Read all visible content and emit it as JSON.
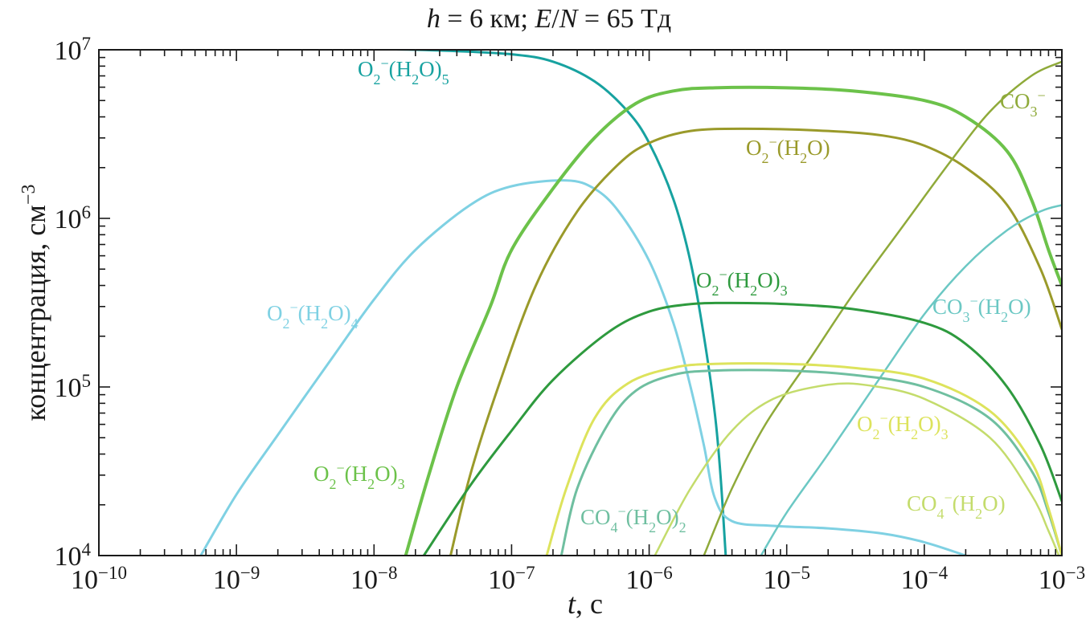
{
  "chart_data": {
    "type": "line",
    "title_parts": [
      {
        "t": "h",
        "italic": true
      },
      {
        "t": " = 6 км; "
      },
      {
        "t": "E",
        "italic": true
      },
      {
        "t": "/"
      },
      {
        "t": "N",
        "italic": true
      },
      {
        "t": " = 65 Тд"
      }
    ],
    "xlabel_parts": [
      {
        "t": "t",
        "italic": true
      },
      {
        "t": ", с"
      }
    ],
    "ylabel_base": "концентрация, см",
    "ylabel_sup": "−3",
    "x_scale": "log",
    "y_scale": "log",
    "xlim": [
      1e-10,
      0.001
    ],
    "ylim": [
      10000.0,
      10000000.0
    ],
    "grid": false,
    "legend": "none (labels placed next to curves)",
    "x_ticks": [
      {
        "base": "10",
        "exp": "−10"
      },
      {
        "base": "10",
        "exp": "−9"
      },
      {
        "base": "10",
        "exp": "−8"
      },
      {
        "base": "10",
        "exp": "−7"
      },
      {
        "base": "10",
        "exp": "−6"
      },
      {
        "base": "10",
        "exp": "−5"
      },
      {
        "base": "10",
        "exp": "−4"
      },
      {
        "base": "10",
        "exp": "−3"
      }
    ],
    "y_ticks": [
      {
        "base": "10",
        "exp": "4"
      },
      {
        "base": "10",
        "exp": "5"
      },
      {
        "base": "10",
        "exp": "6"
      },
      {
        "base": "10",
        "exp": "7"
      }
    ],
    "series": [
      {
        "name": "O2-(H2O)5",
        "label_parts": [
          {
            "t": "O"
          },
          {
            "t": "2",
            "sub": true
          },
          {
            "t": "−",
            "sup": true
          },
          {
            "t": "(H"
          },
          {
            "t": "2",
            "sub": true
          },
          {
            "t": "O)"
          },
          {
            "t": "5",
            "sub": true
          }
        ],
        "color": "#17a2a0",
        "width": 3,
        "points": [
          [
            1e-10,
            10200000.0
          ],
          [
            1e-09,
            10200000.0
          ],
          [
            1e-08,
            10100000.0
          ],
          [
            3e-08,
            9900000.0
          ],
          [
            1e-07,
            9400000.0
          ],
          [
            2e-07,
            8500000.0
          ],
          [
            4e-07,
            6500000.0
          ],
          [
            7e-07,
            4300000.0
          ],
          [
            1e-06,
            2800000.0
          ],
          [
            1.5e-06,
            1300000.0
          ],
          [
            2e-06,
            550000.0
          ],
          [
            2.5e-06,
            200000.0
          ],
          [
            3e-06,
            70000.0
          ],
          [
            3.3e-06,
            30000.0
          ],
          [
            3.6e-06,
            10000.0
          ]
        ]
      },
      {
        "name": "O2-(H2O)4",
        "label_parts": [
          {
            "t": "O"
          },
          {
            "t": "2",
            "sub": true
          },
          {
            "t": "−",
            "sup": true
          },
          {
            "t": "(H"
          },
          {
            "t": "2",
            "sub": true
          },
          {
            "t": "O)"
          },
          {
            "t": "4",
            "sub": true
          }
        ],
        "color": "#7fd1e3",
        "width": 3,
        "points": [
          [
            5.5e-10,
            10000.0
          ],
          [
            1e-09,
            23000.0
          ],
          [
            2e-09,
            52000.0
          ],
          [
            5e-09,
            150000.0
          ],
          [
            1e-08,
            330000.0
          ],
          [
            2e-08,
            650000.0
          ],
          [
            5e-08,
            1200000.0
          ],
          [
            1e-07,
            1550000.0
          ],
          [
            2.5e-07,
            1680000.0
          ],
          [
            4e-07,
            1500000.0
          ],
          [
            6e-07,
            1100000.0
          ],
          [
            1e-06,
            560000.0
          ],
          [
            1.5e-06,
            240000.0
          ],
          [
            2e-06,
            100000.0
          ],
          [
            2.5e-06,
            45000.0
          ],
          [
            3e-06,
            22000.0
          ],
          [
            4e-06,
            16000.0
          ],
          [
            8e-06,
            15000.0
          ],
          [
            2e-05,
            14500.0
          ],
          [
            5e-05,
            13500.0
          ],
          [
            0.0001,
            12000.0
          ],
          [
            0.0002,
            10000.0
          ]
        ]
      },
      {
        "name": "O2-(H2O)3 (green)",
        "label_parts": [
          {
            "t": "O"
          },
          {
            "t": "2",
            "sub": true
          },
          {
            "t": "−",
            "sup": true
          },
          {
            "t": "(H"
          },
          {
            "t": "2",
            "sub": true
          },
          {
            "t": "O)"
          },
          {
            "t": "3",
            "sub": true
          }
        ],
        "color": "#6cc24a",
        "width": 4,
        "points": [
          [
            1.7e-08,
            10000.0
          ],
          [
            2.5e-08,
            30000.0
          ],
          [
            4e-08,
            100000.0
          ],
          [
            7e-08,
            300000.0
          ],
          [
            1e-07,
            650000.0
          ],
          [
            2e-07,
            1500000.0
          ],
          [
            4e-07,
            3000000.0
          ],
          [
            8e-07,
            4800000.0
          ],
          [
            1.5e-06,
            5700000.0
          ],
          [
            3e-06,
            5950000.0
          ],
          [
            1e-05,
            5950000.0
          ],
          [
            3e-05,
            5700000.0
          ],
          [
            0.0001,
            5000000.0
          ],
          [
            0.0002,
            4000000.0
          ],
          [
            0.0004,
            2500000.0
          ],
          [
            0.0006,
            1300000.0
          ],
          [
            0.0008,
            650000.0
          ],
          [
            0.001,
            400000.0
          ]
        ]
      },
      {
        "name": "O2-(H2O)",
        "label_parts": [
          {
            "t": "O"
          },
          {
            "t": "2",
            "sub": true
          },
          {
            "t": "−",
            "sup": true
          },
          {
            "t": "(H"
          },
          {
            "t": "2",
            "sub": true
          },
          {
            "t": "O)"
          }
        ],
        "color": "#9a9a2a",
        "width": 3,
        "points": [
          [
            3.6e-08,
            10000.0
          ],
          [
            5e-08,
            30000.0
          ],
          [
            8e-08,
            100000.0
          ],
          [
            1.5e-07,
            400000.0
          ],
          [
            3e-07,
            1100000.0
          ],
          [
            6e-07,
            2100000.0
          ],
          [
            1e-06,
            2800000.0
          ],
          [
            2e-06,
            3300000.0
          ],
          [
            5e-06,
            3400000.0
          ],
          [
            2e-05,
            3300000.0
          ],
          [
            5e-05,
            3100000.0
          ],
          [
            0.0001,
            2700000.0
          ],
          [
            0.0002,
            2000000.0
          ],
          [
            0.0004,
            1200000.0
          ],
          [
            0.0007,
            500000.0
          ],
          [
            0.001,
            220000.0
          ]
        ]
      },
      {
        "name": "CO3-",
        "label_parts": [
          {
            "t": "CO"
          },
          {
            "t": "3",
            "sub": true
          },
          {
            "t": "−",
            "sup": true
          }
        ],
        "color": "#8faa3a",
        "width": 2.5,
        "points": [
          [
            2.5e-06,
            10000.0
          ],
          [
            4e-06,
            25000.0
          ],
          [
            7e-06,
            60000.0
          ],
          [
            1.5e-05,
            150000.0
          ],
          [
            3e-05,
            350000.0
          ],
          [
            7e-05,
            900000.0
          ],
          [
            0.00015,
            2100000.0
          ],
          [
            0.0003,
            4300000.0
          ],
          [
            0.0006,
            7000000.0
          ],
          [
            0.001,
            8500000.0
          ]
        ]
      },
      {
        "name": "CO3-(H2O)",
        "label_parts": [
          {
            "t": "CO"
          },
          {
            "t": "3",
            "sub": true
          },
          {
            "t": "−",
            "sup": true
          },
          {
            "t": "(H"
          },
          {
            "t": "2",
            "sub": true
          },
          {
            "t": "O)"
          }
        ],
        "color": "#6cc8c4",
        "width": 2.5,
        "points": [
          [
            6.5e-06,
            10000.0
          ],
          [
            1e-05,
            18000.0
          ],
          [
            2e-05,
            40000.0
          ],
          [
            5e-05,
            120000.0
          ],
          [
            0.0001,
            270000.0
          ],
          [
            0.0002,
            520000.0
          ],
          [
            0.0004,
            850000.0
          ],
          [
            0.0007,
            1100000.0
          ],
          [
            0.001,
            1200000.0
          ]
        ]
      },
      {
        "name": "O2-(H2O)3 (dark green)",
        "label_parts": [
          {
            "t": "O"
          },
          {
            "t": "2",
            "sub": true
          },
          {
            "t": "−",
            "sup": true
          },
          {
            "t": "(H"
          },
          {
            "t": "2",
            "sub": true
          },
          {
            "t": "O)"
          },
          {
            "t": "3",
            "sub": true
          }
        ],
        "color": "#2e9a3e",
        "width": 3,
        "points": [
          [
            2.3e-08,
            10000.0
          ],
          [
            5e-08,
            26000.0
          ],
          [
            1e-07,
            55000.0
          ],
          [
            2e-07,
            110000.0
          ],
          [
            5e-07,
            210000.0
          ],
          [
            1e-06,
            280000.0
          ],
          [
            2e-06,
            310000.0
          ],
          [
            4e-06,
            315000.0
          ],
          [
            1e-05,
            310000.0
          ],
          [
            3e-05,
            290000.0
          ],
          [
            0.0001,
            240000.0
          ],
          [
            0.0002,
            180000.0
          ],
          [
            0.0004,
            100000.0
          ],
          [
            0.0007,
            45000.0
          ],
          [
            0.001,
            21000.0
          ]
        ]
      },
      {
        "name": "CO4-(H2O)2",
        "label_parts": [
          {
            "t": "CO"
          },
          {
            "t": "4",
            "sub": true
          },
          {
            "t": "−",
            "sup": true
          },
          {
            "t": "(H"
          },
          {
            "t": "2",
            "sub": true
          },
          {
            "t": "O)"
          },
          {
            "t": "2",
            "sub": true
          }
        ],
        "color": "#6fbfa0",
        "width": 3,
        "points": [
          [
            2.3e-07,
            10000.0
          ],
          [
            3e-07,
            25000.0
          ],
          [
            5e-07,
            60000.0
          ],
          [
            8e-07,
            95000.0
          ],
          [
            1.5e-06,
            118000.0
          ],
          [
            3e-06,
            125000.0
          ],
          [
            1e-05,
            125000.0
          ],
          [
            3e-05,
            118000.0
          ],
          [
            0.0001,
            100000.0
          ],
          [
            0.0003,
            65000.0
          ],
          [
            0.0006,
            32000.0
          ],
          [
            0.0008,
            18000.0
          ],
          [
            0.001,
            10000.0
          ]
        ]
      },
      {
        "name": "O2-(H2O)3 (yellow)",
        "label_parts": [
          {
            "t": "O"
          },
          {
            "t": "2",
            "sub": true
          },
          {
            "t": "−",
            "sup": true
          },
          {
            "t": "(H"
          },
          {
            "t": "2",
            "sub": true
          },
          {
            "t": "O)"
          },
          {
            "t": "3",
            "sub": true
          }
        ],
        "color": "#dde35c",
        "width": 3,
        "points": [
          [
            1.8e-07,
            10000.0
          ],
          [
            2.5e-07,
            25000.0
          ],
          [
            4e-07,
            65000.0
          ],
          [
            7e-07,
            105000.0
          ],
          [
            1.5e-06,
            130000.0
          ],
          [
            3e-06,
            137000.0
          ],
          [
            1e-05,
            137000.0
          ],
          [
            3e-05,
            130000.0
          ],
          [
            0.0001,
            112000.0
          ],
          [
            0.0003,
            72000.0
          ],
          [
            0.0006,
            36000.0
          ],
          [
            0.0008,
            19000.0
          ],
          [
            0.001,
            10000.0
          ]
        ]
      },
      {
        "name": "CO4-(H2O)",
        "label_parts": [
          {
            "t": "CO"
          },
          {
            "t": "4",
            "sub": true
          },
          {
            "t": "−",
            "sup": true
          },
          {
            "t": "(H"
          },
          {
            "t": "2",
            "sub": true
          },
          {
            "t": "O)"
          }
        ],
        "color": "#c4dc6c",
        "width": 2.5,
        "points": [
          [
            1.1e-06,
            10000.0
          ],
          [
            2e-06,
            25000.0
          ],
          [
            4e-06,
            55000.0
          ],
          [
            8e-06,
            85000.0
          ],
          [
            2e-05,
            103000.0
          ],
          [
            4e-05,
            102000.0
          ],
          [
            0.0001,
            85000.0
          ],
          [
            0.0003,
            50000.0
          ],
          [
            0.0006,
            23000.0
          ],
          [
            0.0008,
            14000.0
          ],
          [
            0.00095,
            10000.0
          ]
        ]
      }
    ],
    "annotations": [
      {
        "series": 0,
        "pos": [
          445,
          95
        ]
      },
      {
        "series": 1,
        "pos": [
          332,
          399
        ]
      },
      {
        "series": 2,
        "pos": [
          390,
          599
        ]
      },
      {
        "series": 3,
        "pos": [
          928,
          193
        ]
      },
      {
        "series": 4,
        "pos": [
          1244,
          135
        ]
      },
      {
        "series": 5,
        "pos": [
          1160,
          391
        ]
      },
      {
        "series": 6,
        "pos": [
          866,
          358
        ]
      },
      {
        "series": 7,
        "pos": [
          722,
          653
        ]
      },
      {
        "series": 8,
        "pos": [
          1066,
          537
        ]
      },
      {
        "series": 9,
        "pos": [
          1128,
          636
        ]
      }
    ]
  }
}
